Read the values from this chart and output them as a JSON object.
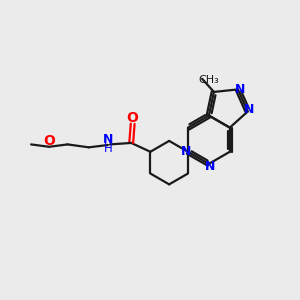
{
  "background_color": "#ebebeb",
  "bond_color": "#1a1a1a",
  "N_color": "#0000ff",
  "O_color": "#ff0000",
  "NH_color": "#0000ff",
  "line_width": 1.6,
  "font_size": 8.5,
  "fig_width": 3.0,
  "fig_height": 3.0,
  "dpi": 100,
  "xlim": [
    0,
    10
  ],
  "ylim": [
    0,
    10
  ]
}
